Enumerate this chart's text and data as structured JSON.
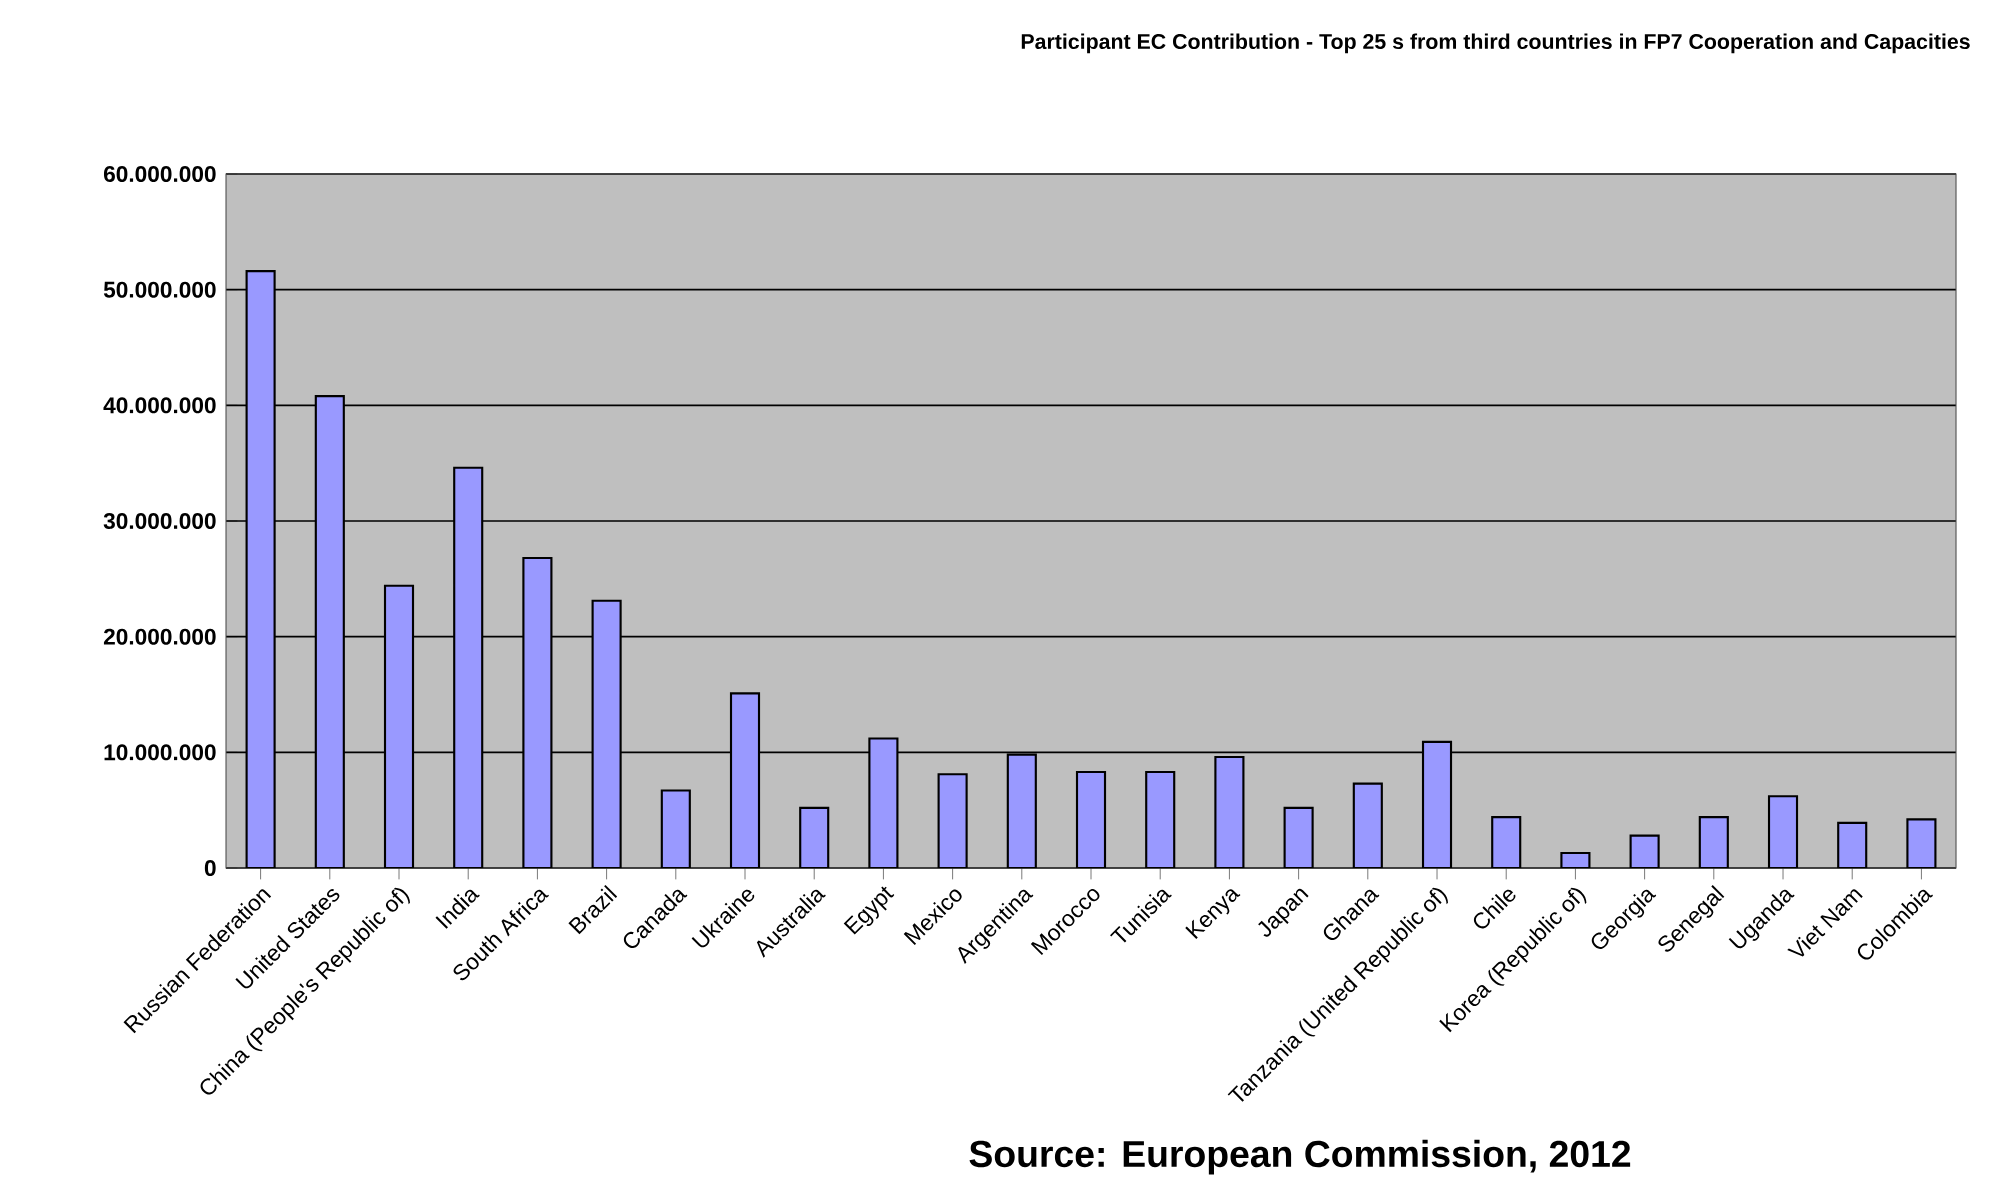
{
  "chart_data": {
    "type": "bar",
    "title": "Participant EC Contribution - Top 25 s  from third countries in FP7 Cooperation and Capacities",
    "categories": [
      "Russian Federation",
      "United States",
      "China (People's Republic of)",
      "India",
      "South Africa",
      "Brazil",
      "Canada",
      "Ukraine",
      "Australia",
      "Egypt",
      "Mexico",
      "Argentina",
      "Morocco",
      "Tunisia",
      "Kenya",
      "Japan",
      "Ghana",
      "Tanzania (United Republic of)",
      "Chile",
      "Korea (Republic of)",
      "Georgia",
      "Senegal",
      "Uganda",
      "Viet Nam",
      "Colombia"
    ],
    "values": [
      51600000,
      40800000,
      24400000,
      34600000,
      26800000,
      23100000,
      6700000,
      15100000,
      5200000,
      11200000,
      8100000,
      9800000,
      8300000,
      8300000,
      9600000,
      5200000,
      7300000,
      10900000,
      4400000,
      1300000,
      2800000,
      4400000,
      6200000,
      3900000,
      4200000
    ],
    "color": "#9999ff",
    "ylim": [
      0,
      60000000
    ],
    "yticks": [
      {
        "value": 0,
        "label": "0"
      },
      {
        "value": 10000000,
        "label": "10.000.000"
      },
      {
        "value": 20000000,
        "label": "20.000.000"
      },
      {
        "value": 30000000,
        "label": "30.000.000"
      },
      {
        "value": 40000000,
        "label": "40.000.000"
      },
      {
        "value": 50000000,
        "label": "50.000.000"
      },
      {
        "value": 60000000,
        "label": "60.000.000"
      }
    ],
    "grid": "y",
    "annotations": [
      "Source: European Commission, 2012"
    ]
  }
}
